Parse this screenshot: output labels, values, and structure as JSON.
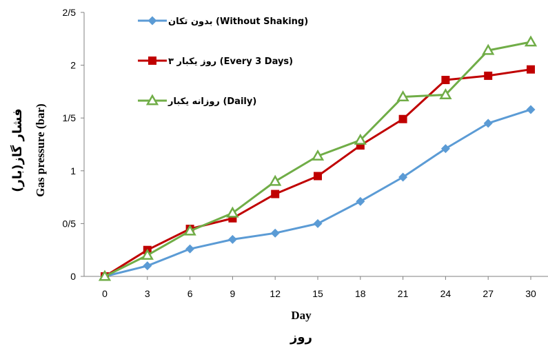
{
  "chart_data": {
    "type": "line",
    "xlabel": "Day",
    "xlabel_fa": "روز",
    "ylabel": "Gas pressure (bar)",
    "ylabel_fa": "فشار گاز(بار)",
    "x": [
      0,
      3,
      6,
      9,
      12,
      15,
      18,
      21,
      24,
      27,
      30
    ],
    "xlim": [
      0,
      30
    ],
    "ylim": [
      0,
      2.5
    ],
    "y_ticks": [
      "0",
      "0/5",
      "1",
      "1/5",
      "2",
      "2/5"
    ],
    "y_tick_values": [
      0,
      0.5,
      1,
      1.5,
      2,
      2.5
    ],
    "grid": false,
    "legend_position": "top-left",
    "series": [
      {
        "name": "بدون تکان (Without Shaking)",
        "color": "#5b9bd5",
        "marker": "diamond",
        "values": [
          0,
          0.1,
          0.26,
          0.35,
          0.41,
          0.5,
          0.71,
          0.94,
          1.21,
          1.45,
          1.58
        ]
      },
      {
        "name": "۳ روز یکبار (Every 3 Days)",
        "color": "#c00000",
        "marker": "square",
        "values": [
          0,
          0.25,
          0.45,
          0.55,
          0.78,
          0.95,
          1.24,
          1.49,
          1.86,
          1.9,
          1.96
        ]
      },
      {
        "name": "روزانه یکبار (Daily)",
        "color": "#70ad47",
        "marker": "triangle",
        "values": [
          0,
          0.2,
          0.43,
          0.6,
          0.9,
          1.14,
          1.29,
          1.7,
          1.72,
          2.14,
          2.22
        ]
      }
    ]
  }
}
